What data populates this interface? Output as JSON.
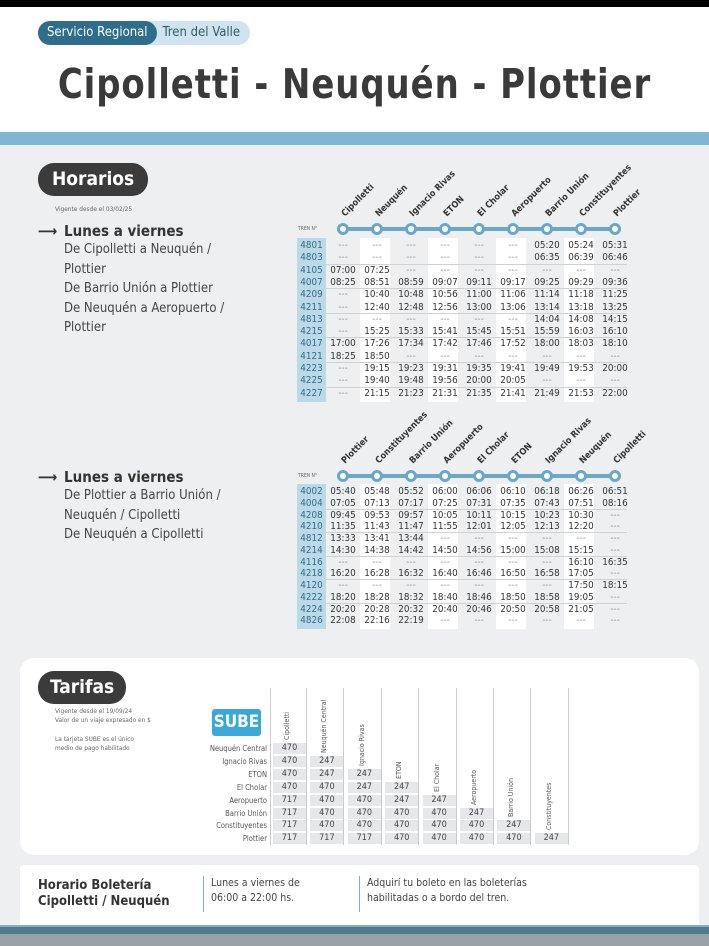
{
  "header": {
    "service": "Servicio Regional",
    "line": "Tren del Valle",
    "title": "Cipolletti - Neuquén - Plottier"
  },
  "horarios": {
    "label": "Horarios",
    "valid_from": "Vigente desde el 03/02/25",
    "train_header": "TREN N°",
    "schedules": [
      {
        "day": "Lunes a viernes",
        "directions": [
          "De Cipolletti a Neuquén /",
          "Plottier",
          "De Barrio Unión a Plottier",
          "De Neuquén a Aeropuerto /",
          "Plottier"
        ],
        "stations": [
          "Cipolletti",
          "Neuquén",
          "Ignacio Rivas",
          "ETON",
          "El Cholar",
          "Aeropuerto",
          "Barrio Unión",
          "Constituyentes",
          "Plottier"
        ],
        "rows": [
          [
            "4801",
            "---",
            "---",
            "---",
            "---",
            "---",
            "---",
            "05:20",
            "05:24",
            "05:31"
          ],
          [
            "4803",
            "---",
            "---",
            "---",
            "---",
            "---",
            "---",
            "06:35",
            "06:39",
            "06:46"
          ],
          [
            "4105",
            "07:00",
            "07:25",
            "---",
            "---",
            "---",
            "---",
            "---",
            "---",
            "---"
          ],
          [
            "4007",
            "08:25",
            "08:51",
            "08:59",
            "09:07",
            "09:11",
            "09:17",
            "09:25",
            "09:29",
            "09:36"
          ],
          [
            "4209",
            "---",
            "10:40",
            "10:48",
            "10:56",
            "11:00",
            "11:06",
            "11:14",
            "11:18",
            "11:25"
          ],
          [
            "4211",
            "---",
            "12:40",
            "12:48",
            "12:56",
            "13:00",
            "13:06",
            "13:14",
            "13:18",
            "13:25"
          ],
          [
            "4813",
            "---",
            "---",
            "---",
            "---",
            "---",
            "---",
            "14:04",
            "14:08",
            "14:15"
          ],
          [
            "4215",
            "---",
            "15:25",
            "15:33",
            "15:41",
            "15:45",
            "15:51",
            "15:59",
            "16:03",
            "16:10"
          ],
          [
            "4017",
            "17:00",
            "17:26",
            "17:34",
            "17:42",
            "17:46",
            "17:52",
            "18:00",
            "18:03",
            "18:10"
          ],
          [
            "4121",
            "18:25",
            "18:50",
            "---",
            "---",
            "---",
            "---",
            "---",
            "---",
            "---"
          ],
          [
            "4223",
            "---",
            "19:15",
            "19:23",
            "19:31",
            "19:35",
            "19:41",
            "19:49",
            "19:53",
            "20:00"
          ],
          [
            "4225",
            "---",
            "19:40",
            "19:48",
            "19:56",
            "20:00",
            "20:05",
            "---",
            "---",
            "---"
          ],
          [
            "4227",
            "---",
            "21:15",
            "21:23",
            "21:31",
            "21:35",
            "21:41",
            "21:49",
            "21:53",
            "22:00"
          ]
        ]
      },
      {
        "day": "Lunes a viernes",
        "directions": [
          "De Plottier a Barrio Unión /",
          "Neuquén / Cipolletti",
          "De Neuquén a Cipolletti"
        ],
        "stations": [
          "Plottier",
          "Constituyentes",
          "Barrio Unión",
          "Aeropuerto",
          "El Cholar",
          "ETON",
          "Ignacio Rivas",
          "Neuquén",
          "Cipolletti"
        ],
        "rows": [
          [
            "4002",
            "05:40",
            "05:48",
            "05:52",
            "06:00",
            "06:06",
            "06:10",
            "06:18",
            "06:26",
            "06:51"
          ],
          [
            "4004",
            "07:05",
            "07:13",
            "07:17",
            "07:25",
            "07:31",
            "07:35",
            "07:43",
            "07:51",
            "08:16"
          ],
          [
            "4208",
            "09:45",
            "09:53",
            "09:57",
            "10:05",
            "10:11",
            "10:15",
            "10:23",
            "10:30",
            "---"
          ],
          [
            "4210",
            "11:35",
            "11:43",
            "11:47",
            "11:55",
            "12:01",
            "12:05",
            "12:13",
            "12:20",
            "---"
          ],
          [
            "4812",
            "13:33",
            "13:41",
            "13:44",
            "---",
            "---",
            "---",
            "---",
            "---",
            "---"
          ],
          [
            "4214",
            "14:30",
            "14:38",
            "14:42",
            "14:50",
            "14:56",
            "15:00",
            "15:08",
            "15:15",
            "---"
          ],
          [
            "4116",
            "---",
            "---",
            "---",
            "---",
            "---",
            "---",
            "---",
            "16:10",
            "16:35"
          ],
          [
            "4218",
            "16:20",
            "16:28",
            "16:32",
            "16:40",
            "16:46",
            "16:50",
            "16:58",
            "17:05",
            "---"
          ],
          [
            "4120",
            "---",
            "---",
            "---",
            "---",
            "---",
            "---",
            "---",
            "17:50",
            "18:15"
          ],
          [
            "4222",
            "18:20",
            "18:28",
            "18:32",
            "18:40",
            "18:46",
            "18:50",
            "18:58",
            "19:05",
            "---"
          ],
          [
            "4224",
            "20:20",
            "20:28",
            "20:32",
            "20:40",
            "20:46",
            "20:50",
            "20:58",
            "21:05",
            "---"
          ],
          [
            "4826",
            "22:08",
            "22:16",
            "22:19",
            "---",
            "---",
            "---",
            "---",
            "---",
            "---"
          ]
        ]
      }
    ]
  },
  "tarifas": {
    "label": "Tarifas",
    "valid_from": "Vigente desde el 19/09/24",
    "value_note": "Valor de un viaje expresado en $",
    "sube_note_1": "La tarjeta SUBE es el único",
    "sube_note_2": "medio de pago habilitado",
    "sube_logo": "SUBE",
    "columns": [
      "Cipolletti",
      "Neuquén Central",
      "Ignacio Rivas",
      "ETON",
      "El Cholar",
      "Aeropuerto",
      "Barrio Unión",
      "Constituyentes"
    ],
    "rows": [
      {
        "label": "Neuquén Central",
        "values": [
          "470"
        ]
      },
      {
        "label": "Ignacio Rivas",
        "values": [
          "470",
          "247"
        ]
      },
      {
        "label": "ETON",
        "values": [
          "470",
          "247",
          "247"
        ]
      },
      {
        "label": "El Cholar",
        "values": [
          "470",
          "470",
          "247",
          "247"
        ]
      },
      {
        "label": "Aeropuerto",
        "values": [
          "717",
          "470",
          "470",
          "247",
          "247"
        ]
      },
      {
        "label": "Barrio Unión",
        "values": [
          "717",
          "470",
          "470",
          "470",
          "470",
          "247"
        ]
      },
      {
        "label": "Constituyentes",
        "values": [
          "717",
          "470",
          "470",
          "470",
          "470",
          "470",
          "247"
        ]
      },
      {
        "label": "Plottier",
        "values": [
          "717",
          "717",
          "717",
          "470",
          "470",
          "470",
          "470",
          "247"
        ]
      }
    ]
  },
  "boleteria": {
    "title_1": "Horario Boletería",
    "title_2": "Cipolletti / Neuquén",
    "hours_1": "Lunes a viernes de",
    "hours_2": "06:00 a 22:00 hs.",
    "note_1": "Adquirí tu boleto en las boleterías",
    "note_2": "habilitadas o a bordo del tren."
  },
  "colors": {
    "accent": "#2e6e8c",
    "route": "#6aa8c7",
    "stripe": "#80b6d1",
    "dark": "#3b3b3b"
  }
}
